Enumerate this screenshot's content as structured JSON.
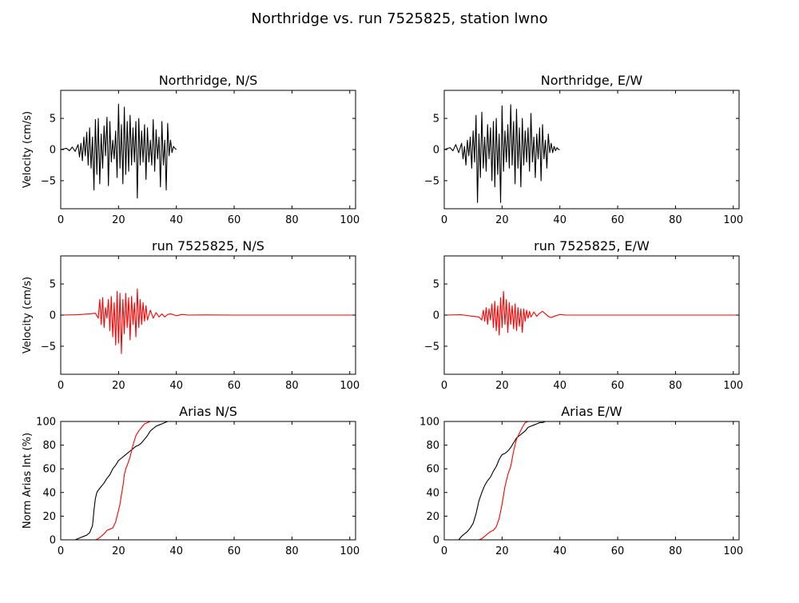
{
  "figure": {
    "title": "Northridge vs. run 7525825, station lwno",
    "observed_color": "#000000",
    "synthetic_color": "#ff0000"
  },
  "chart_data": [
    {
      "type": "line",
      "title": "Northridge, N/S",
      "xlabel": "",
      "ylabel": "Velocity (cm/s)",
      "xlim": [
        0,
        102
      ],
      "ylim": [
        -9.5,
        9.5
      ],
      "xticks": [
        0,
        20,
        40,
        60,
        80,
        100
      ],
      "yticks": [
        -5,
        0,
        5
      ],
      "series": [
        {
          "color": "#000000",
          "kind": "seismogram",
          "x": [
            0,
            2,
            3,
            4,
            5,
            6,
            6.5,
            7,
            7.5,
            8,
            8.5,
            9,
            9.5,
            10,
            10.5,
            11,
            11.5,
            12,
            12.5,
            13,
            13.5,
            14,
            14.5,
            15,
            15.5,
            16,
            16.5,
            17,
            17.5,
            18,
            18.5,
            19,
            19.5,
            20,
            20.5,
            21,
            21.5,
            22,
            22.5,
            23,
            23.5,
            24,
            24.5,
            25,
            25.5,
            26,
            26.5,
            27,
            27.5,
            28,
            28.5,
            29,
            29.5,
            30,
            30.5,
            31,
            31.5,
            32,
            32.5,
            33,
            33.5,
            34,
            34.5,
            35,
            35.5,
            36,
            36.5,
            37,
            37.5,
            38,
            38.5,
            39,
            39.5,
            40
          ],
          "y": [
            0,
            0.2,
            -0.2,
            0.4,
            -0.3,
            0.8,
            -1.2,
            1.0,
            -1.8,
            2.0,
            -1.0,
            2.8,
            -2.5,
            3.5,
            -3.0,
            2.0,
            -6.5,
            4.8,
            -4.0,
            5.0,
            -5.5,
            2.5,
            -3.0,
            3.8,
            -1.0,
            5.2,
            -5.8,
            4.5,
            -2.0,
            1.5,
            -1.5,
            3.0,
            -4.5,
            7.3,
            -3.0,
            4.0,
            -5.5,
            6.8,
            -4.0,
            4.5,
            -3.5,
            5.5,
            -2.5,
            3.5,
            -2.0,
            4.5,
            -7.8,
            5.0,
            -2.5,
            3.0,
            -2.0,
            4.0,
            -4.8,
            3.5,
            -2.0,
            1.5,
            -2.5,
            4.8,
            -3.5,
            3.2,
            -1.5,
            2.0,
            -6.0,
            4.5,
            -2.5,
            1.5,
            -6.5,
            4.2,
            -1.0,
            1.5,
            -0.5,
            0.5,
            0.2,
            0
          ]
        }
      ]
    },
    {
      "type": "line",
      "title": "Northridge, E/W",
      "xlabel": "",
      "ylabel": "",
      "xlim": [
        0,
        102
      ],
      "ylim": [
        -9.5,
        9.5
      ],
      "xticks": [
        0,
        20,
        40,
        60,
        80,
        100
      ],
      "yticks": [
        -5,
        0,
        5
      ],
      "series": [
        {
          "color": "#000000",
          "kind": "seismogram",
          "x": [
            0,
            2,
            3,
            4,
            5,
            6,
            6.5,
            7,
            7.5,
            8,
            8.5,
            9,
            9.5,
            10,
            10.5,
            11,
            11.5,
            12,
            12.5,
            13,
            13.5,
            14,
            14.5,
            15,
            15.5,
            16,
            16.5,
            17,
            17.5,
            18,
            18.5,
            19,
            19.5,
            20,
            20.5,
            21,
            21.5,
            22,
            22.5,
            23,
            23.5,
            24,
            24.5,
            25,
            25.5,
            26,
            26.5,
            27,
            27.5,
            28,
            28.5,
            29,
            29.5,
            30,
            30.5,
            31,
            31.5,
            32,
            32.5,
            33,
            33.5,
            34,
            34.5,
            35,
            35.5,
            36,
            36.5,
            37,
            37.5,
            38,
            38.5,
            39,
            39.5,
            40
          ],
          "y": [
            0,
            0.3,
            -0.2,
            0.8,
            -0.5,
            1.0,
            -1.5,
            0.5,
            -2.5,
            1.5,
            -1.0,
            2.0,
            -3.0,
            3.0,
            -2.0,
            5.5,
            -8.5,
            2.5,
            -4.5,
            6.0,
            -3.0,
            2.0,
            -3.5,
            4.0,
            -1.5,
            3.5,
            -5.0,
            4.5,
            -6.0,
            5.0,
            -4.0,
            2.5,
            -8.5,
            7.0,
            -3.5,
            3.0,
            -2.0,
            4.0,
            -3.0,
            7.2,
            -2.5,
            4.5,
            -5.5,
            6.5,
            -3.0,
            3.5,
            -6.0,
            5.0,
            -2.5,
            3.0,
            -2.0,
            3.5,
            -3.5,
            5.8,
            -2.0,
            2.0,
            -4.5,
            2.5,
            -1.5,
            3.5,
            -5.0,
            4.0,
            -1.5,
            1.5,
            -3.0,
            2.5,
            -0.5,
            1.0,
            -0.5,
            0.5,
            -0.2,
            0.3,
            0,
            0
          ]
        }
      ]
    },
    {
      "type": "line",
      "title": "run 7525825, N/S",
      "xlabel": "",
      "ylabel": "Velocity (cm/s)",
      "xlim": [
        0,
        102
      ],
      "ylim": [
        -9.5,
        9.5
      ],
      "xticks": [
        0,
        20,
        40,
        60,
        80,
        100
      ],
      "yticks": [
        -5,
        0,
        5
      ],
      "series": [
        {
          "color": "#ff0000",
          "kind": "seismogram",
          "x": [
            0,
            6,
            10,
            12,
            13,
            13.5,
            14,
            14.5,
            15,
            15.5,
            16,
            16.5,
            17,
            17.5,
            18,
            18.5,
            19,
            19.5,
            20,
            20.5,
            21,
            21.5,
            22,
            22.5,
            23,
            23.5,
            24,
            24.5,
            25,
            25.5,
            26,
            26.5,
            27,
            27.5,
            28,
            28.5,
            29,
            29.5,
            30,
            31,
            32,
            33,
            34,
            35,
            36,
            37,
            38,
            40,
            42,
            44,
            50,
            60,
            70,
            80,
            90,
            102
          ],
          "y": [
            0,
            0.05,
            0.2,
            0.3,
            -0.5,
            2.5,
            -1.5,
            2.8,
            -2.0,
            1.2,
            -0.5,
            2.5,
            -2.5,
            3.0,
            -3.5,
            2.0,
            -4.8,
            3.8,
            -4.5,
            3.5,
            -6.2,
            2.5,
            -3.0,
            3.5,
            -2.0,
            2.8,
            -4.0,
            3.0,
            -1.5,
            2.0,
            -3.5,
            4.2,
            -2.0,
            2.5,
            -1.5,
            2.0,
            -1.0,
            1.5,
            -0.8,
            0.8,
            -0.5,
            0.4,
            -0.3,
            0.2,
            -0.3,
            0.1,
            0.2,
            -0.1,
            0.1,
            0,
            0.02,
            0,
            0,
            0,
            0,
            0
          ]
        }
      ]
    },
    {
      "type": "line",
      "title": "run 7525825, E/W",
      "xlabel": "",
      "ylabel": "",
      "xlim": [
        0,
        102
      ],
      "ylim": [
        -9.5,
        9.5
      ],
      "xticks": [
        0,
        20,
        40,
        60,
        80,
        100
      ],
      "yticks": [
        -5,
        0,
        5
      ],
      "series": [
        {
          "color": "#ff0000",
          "kind": "seismogram",
          "x": [
            0,
            6,
            10,
            12,
            13,
            13.5,
            14,
            14.5,
            15,
            15.5,
            16,
            16.5,
            17,
            17.5,
            18,
            18.5,
            19,
            19.5,
            20,
            20.5,
            21,
            21.5,
            22,
            22.5,
            23,
            23.5,
            24,
            24.5,
            25,
            25.5,
            26,
            26.5,
            27,
            27.5,
            28,
            28.5,
            29,
            29.5,
            30,
            31,
            32,
            33,
            34,
            35,
            36,
            37,
            38,
            40,
            42,
            44,
            50,
            60,
            70,
            80,
            90,
            102
          ],
          "y": [
            0,
            0.05,
            -0.2,
            -0.3,
            -0.8,
            0.8,
            -1.0,
            1.2,
            -1.5,
            1.0,
            -0.8,
            1.8,
            -2.0,
            2.2,
            -2.5,
            1.5,
            -3.2,
            2.8,
            -2.0,
            3.8,
            -1.5,
            2.5,
            -2.8,
            2.0,
            -1.5,
            1.5,
            -2.2,
            1.8,
            -2.5,
            1.2,
            -1.8,
            1.0,
            -2.8,
            1.0,
            -1.0,
            0.8,
            -0.5,
            0.6,
            -0.3,
            0.5,
            -0.2,
            0.3,
            0.6,
            0.2,
            -0.2,
            -0.4,
            -0.2,
            0.1,
            0,
            0,
            0,
            0,
            0,
            0,
            0,
            0
          ]
        }
      ]
    },
    {
      "type": "line",
      "title": "Arias N/S",
      "xlabel": "",
      "ylabel": "Norm Arias Int (%)",
      "xlim": [
        0,
        102
      ],
      "ylim": [
        0,
        100
      ],
      "xticks": [
        0,
        20,
        40,
        60,
        80,
        100
      ],
      "yticks": [
        0,
        20,
        40,
        60,
        80,
        100
      ],
      "series": [
        {
          "color": "#000000",
          "kind": "cumulative",
          "x": [
            0,
            5,
            6,
            7,
            8,
            9,
            10,
            10.5,
            11,
            11.5,
            12,
            12.5,
            13,
            14,
            15,
            16,
            17,
            18,
            19,
            20,
            21,
            22,
            23,
            24,
            25,
            26,
            27,
            28,
            29,
            30,
            31,
            32,
            33,
            34,
            35,
            36,
            37,
            38,
            40
          ],
          "y": [
            0,
            0,
            1,
            2,
            3,
            4,
            6,
            9,
            12,
            25,
            35,
            40,
            42,
            45,
            48,
            52,
            55,
            60,
            63,
            67,
            69,
            71,
            73,
            75,
            77,
            79,
            80,
            82,
            85,
            88,
            92,
            94,
            96,
            97,
            98,
            99,
            100,
            100,
            100
          ]
        },
        {
          "color": "#ff0000",
          "kind": "cumulative",
          "x": [
            0,
            12,
            13,
            14,
            15,
            16,
            17,
            18,
            19,
            20,
            20.5,
            21,
            21.5,
            22,
            22.5,
            23,
            24,
            25,
            26,
            27,
            28,
            29,
            30,
            31,
            32
          ],
          "y": [
            0,
            0,
            1,
            3,
            5,
            8,
            9,
            10,
            15,
            25,
            30,
            38,
            45,
            55,
            60,
            63,
            70,
            80,
            88,
            92,
            95,
            98,
            99,
            100,
            100
          ]
        }
      ]
    },
    {
      "type": "line",
      "title": "Arias E/W",
      "xlabel": "",
      "ylabel": "",
      "xlim": [
        0,
        102
      ],
      "ylim": [
        0,
        100
      ],
      "xticks": [
        0,
        20,
        40,
        60,
        80,
        100
      ],
      "yticks": [
        0,
        20,
        40,
        60,
        80,
        100
      ],
      "series": [
        {
          "color": "#000000",
          "kind": "cumulative",
          "x": [
            0,
            5,
            6,
            7,
            8,
            9,
            10,
            11,
            12,
            13,
            14,
            15,
            16,
            17,
            18,
            19,
            20,
            21,
            22,
            23,
            24,
            25,
            26,
            27,
            28,
            29,
            30,
            31,
            32,
            33,
            34,
            35,
            36,
            37,
            38,
            40
          ],
          "y": [
            0,
            0,
            3,
            5,
            7,
            10,
            14,
            22,
            33,
            40,
            46,
            50,
            53,
            58,
            62,
            68,
            72,
            73,
            75,
            78,
            82,
            86,
            88,
            90,
            92,
            95,
            96,
            97,
            98,
            99,
            99,
            100,
            100,
            100,
            100,
            100
          ]
        },
        {
          "color": "#ff0000",
          "kind": "cumulative",
          "x": [
            0,
            12,
            13,
            14,
            15,
            16,
            17,
            18,
            19,
            20,
            21,
            22,
            23,
            24,
            25,
            26,
            27,
            28,
            29,
            30,
            31,
            32
          ],
          "y": [
            0,
            0,
            1,
            3,
            5,
            7,
            8,
            11,
            18,
            30,
            45,
            55,
            62,
            75,
            85,
            90,
            95,
            99,
            100,
            100,
            100,
            100
          ]
        }
      ]
    }
  ]
}
